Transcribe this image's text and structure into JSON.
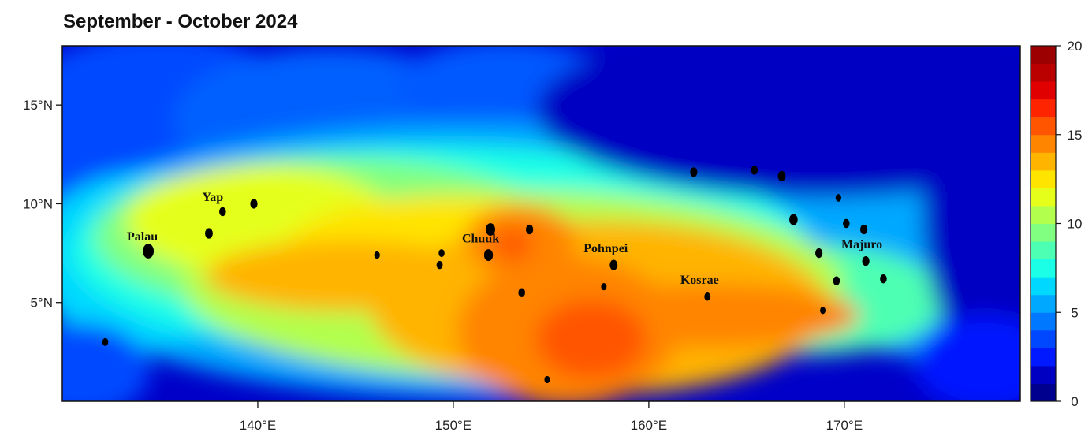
{
  "title": "September - October 2024",
  "map": {
    "lon_range": [
      130,
      179
    ],
    "lat_range": [
      0,
      18
    ],
    "lon_ticks": [
      {
        "value": 140,
        "label": "140°E"
      },
      {
        "value": 150,
        "label": "150°E"
      },
      {
        "value": 160,
        "label": "160°E"
      },
      {
        "value": 170,
        "label": "170°E"
      }
    ],
    "lat_ticks": [
      {
        "value": 5,
        "label": "5°N"
      },
      {
        "value": 10,
        "label": "10°N"
      },
      {
        "value": 15,
        "label": "15°N"
      }
    ],
    "places": [
      {
        "name": "Palau",
        "lon": 134.5,
        "lat": 7.5
      },
      {
        "name": "Yap",
        "lon": 138.1,
        "lat": 9.5
      },
      {
        "name": "Chuuk",
        "lon": 151.8,
        "lat": 7.4
      },
      {
        "name": "Pohnpei",
        "lon": 158.2,
        "lat": 6.9
      },
      {
        "name": "Kosrae",
        "lon": 163.0,
        "lat": 5.3
      },
      {
        "name": "Majuro",
        "lon": 171.3,
        "lat": 7.1
      }
    ],
    "islands": [
      {
        "lon": 134.4,
        "lat": 7.6,
        "size": 0.7
      },
      {
        "lon": 137.5,
        "lat": 8.5,
        "size": 0.4
      },
      {
        "lon": 138.2,
        "lat": 9.6,
        "size": 0.3
      },
      {
        "lon": 139.8,
        "lat": 10.0,
        "size": 0.35
      },
      {
        "lon": 151.9,
        "lat": 8.7,
        "size": 0.55
      },
      {
        "lon": 153.9,
        "lat": 8.7,
        "size": 0.35
      },
      {
        "lon": 151.8,
        "lat": 7.4,
        "size": 0.5
      },
      {
        "lon": 153.5,
        "lat": 5.5,
        "size": 0.3
      },
      {
        "lon": 158.2,
        "lat": 6.9,
        "size": 0.4
      },
      {
        "lon": 163.0,
        "lat": 5.3,
        "size": 0.25
      },
      {
        "lon": 162.3,
        "lat": 11.6,
        "size": 0.35
      },
      {
        "lon": 165.4,
        "lat": 11.7,
        "size": 0.3
      },
      {
        "lon": 166.8,
        "lat": 11.4,
        "size": 0.4
      },
      {
        "lon": 167.4,
        "lat": 9.2,
        "size": 0.45
      },
      {
        "lon": 168.7,
        "lat": 7.5,
        "size": 0.35
      },
      {
        "lon": 169.6,
        "lat": 6.1,
        "size": 0.3
      },
      {
        "lon": 171.1,
        "lat": 7.1,
        "size": 0.35
      },
      {
        "lon": 172.0,
        "lat": 6.2,
        "size": 0.3
      },
      {
        "lon": 171.0,
        "lat": 8.7,
        "size": 0.35
      },
      {
        "lon": 170.1,
        "lat": 9.0,
        "size": 0.3
      },
      {
        "lon": 149.3,
        "lat": 6.9,
        "size": 0.25
      },
      {
        "lon": 149.4,
        "lat": 7.5,
        "size": 0.22
      },
      {
        "lon": 146.1,
        "lat": 7.4,
        "size": 0.2
      },
      {
        "lon": 132.2,
        "lat": 3.0,
        "size": 0.22
      },
      {
        "lon": 154.8,
        "lat": 1.1,
        "size": 0.18
      },
      {
        "lon": 157.7,
        "lat": 5.8,
        "size": 0.18
      },
      {
        "lon": 168.9,
        "lat": 4.6,
        "size": 0.18
      },
      {
        "lon": 169.7,
        "lat": 10.3,
        "size": 0.2
      }
    ]
  },
  "colorbar": {
    "min": 0,
    "max": 20,
    "ticks": [
      {
        "value": 0,
        "label": "0"
      },
      {
        "value": 5,
        "label": "5"
      },
      {
        "value": 10,
        "label": "10"
      },
      {
        "value": 15,
        "label": "15"
      },
      {
        "value": 20,
        "label": "20"
      }
    ],
    "colors": [
      "#00008f",
      "#0000c2",
      "#0019ff",
      "#0048ff",
      "#0078ff",
      "#00a8ff",
      "#00d8ff",
      "#1affe5",
      "#4dffb2",
      "#80ff80",
      "#b2ff4d",
      "#e5ff1a",
      "#ffe400",
      "#ffb400",
      "#ff8400",
      "#ff5400",
      "#ff2400",
      "#e00000",
      "#bb0000",
      "#9c0000"
    ]
  }
}
